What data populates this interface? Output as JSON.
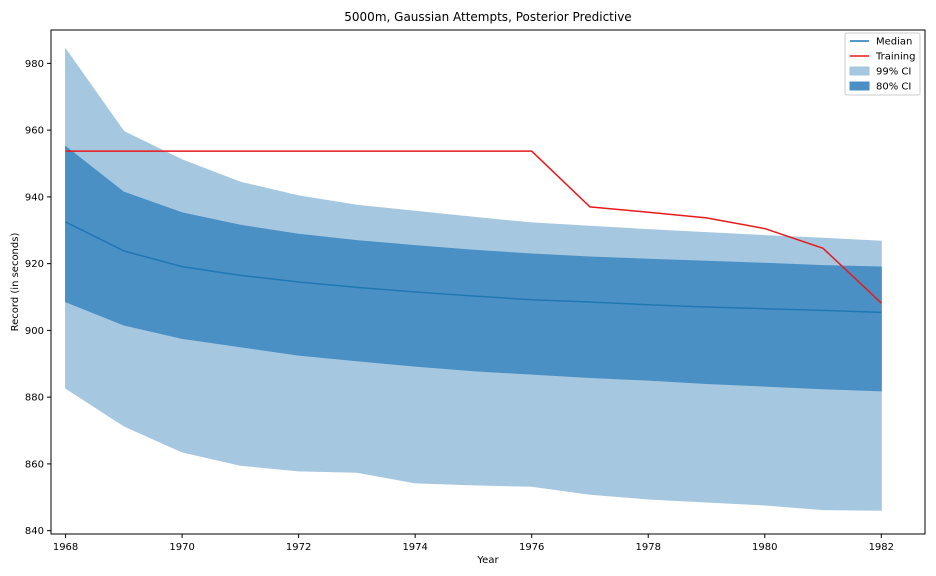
{
  "chart_data": {
    "type": "area",
    "title": "5000m, Gaussian Attempts, Posterior Predictive",
    "xlabel": "Year",
    "ylabel": "Record (in seconds)",
    "xlim": [
      1967.75,
      1982.75
    ],
    "ylim": [
      839,
      990
    ],
    "xticks": [
      1968,
      1970,
      1972,
      1974,
      1976,
      1978,
      1980,
      1982
    ],
    "yticks": [
      840,
      860,
      880,
      900,
      920,
      940,
      960,
      980
    ],
    "grid": false,
    "legend_position": "top-right",
    "x": [
      1968,
      1969,
      1970,
      1971,
      1972,
      1973,
      1974,
      1975,
      1976,
      1977,
      1978,
      1979,
      1980,
      1981,
      1982
    ],
    "series": [
      {
        "name": "Median",
        "kind": "line",
        "color": "#1f77b4",
        "values": [
          932.5,
          923.8,
          919.1,
          916.5,
          914.5,
          912.9,
          911.5,
          910.3,
          909.2,
          908.5,
          907.7,
          907.0,
          906.5,
          906.0,
          905.4
        ]
      },
      {
        "name": "Training",
        "kind": "line",
        "color": "#e8191c",
        "values": [
          953.7,
          953.7,
          953.7,
          953.7,
          953.7,
          953.7,
          953.7,
          953.7,
          953.7,
          937.0,
          935.4,
          933.7,
          930.5,
          924.6,
          908.2
        ]
      },
      {
        "name": "99% CI",
        "kind": "band",
        "color": "#a6c7e0",
        "lower": [
          882.7,
          871.4,
          863.6,
          859.6,
          857.9,
          857.5,
          854.3,
          853.7,
          853.3,
          850.9,
          849.5,
          848.6,
          847.7,
          846.3,
          846.1
        ],
        "upper": [
          984.3,
          959.6,
          951.1,
          944.4,
          940.3,
          937.5,
          935.7,
          933.9,
          932.2,
          931.2,
          930.2,
          929.3,
          928.4,
          927.6,
          926.7
        ]
      },
      {
        "name": "80% CI",
        "kind": "band",
        "color": "#4a90c4",
        "lower": [
          908.6,
          901.6,
          897.6,
          895.1,
          892.6,
          890.9,
          889.3,
          887.9,
          886.9,
          885.9,
          885.1,
          884.1,
          883.3,
          882.5,
          881.9
        ],
        "upper": [
          955.1,
          941.4,
          935.2,
          931.5,
          928.8,
          926.9,
          925.4,
          924.0,
          922.9,
          922.0,
          921.3,
          920.7,
          920.1,
          919.4,
          919.0
        ]
      }
    ]
  }
}
